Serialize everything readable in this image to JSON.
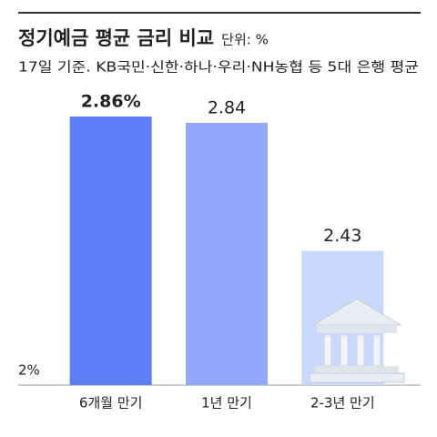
{
  "chart_data": {
    "type": "bar",
    "title": "정기예금 평균 금리 비교",
    "unit": "단위: %",
    "subtitle": "17일 기준. KB국민·신한·하나·우리·NH농협 등 5대 은행 평균",
    "categories": [
      "6개월 만기",
      "1년 만기",
      "2-3년 만기"
    ],
    "values": [
      2.86,
      2.84,
      2.43
    ],
    "value_labels": [
      "2.86%",
      "2.84",
      "2.43"
    ],
    "colors": [
      "#5c7ef6",
      "#90a9f8",
      "#c9d8fd"
    ],
    "ylim": [
      2,
      3
    ],
    "yticks": [
      {
        "value": 2,
        "label": "2%"
      }
    ],
    "grid": false
  }
}
